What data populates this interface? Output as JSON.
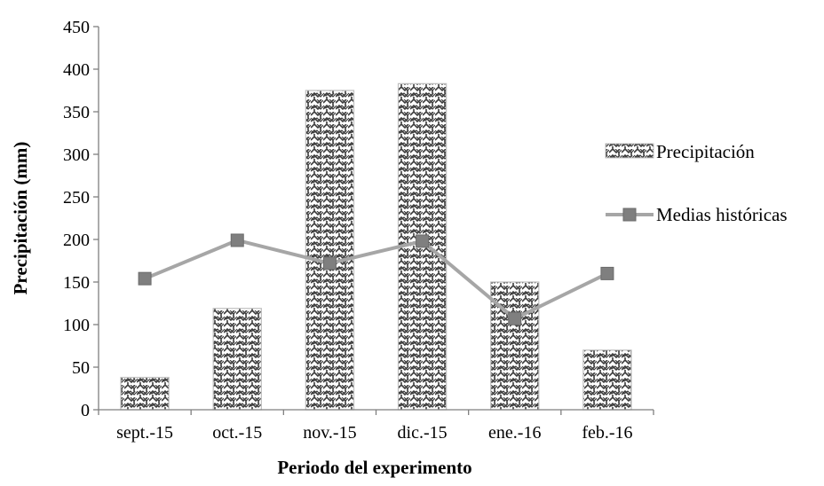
{
  "chart_data": {
    "type": "bar",
    "categories": [
      "sept.-15",
      "oct.-15",
      "nov.-15",
      "dic.-15",
      "ene.-16",
      "feb.-16"
    ],
    "series": [
      {
        "name": "Precipitación",
        "kind": "bar",
        "pattern": "zigzag-hatch",
        "values": [
          38,
          119,
          375,
          383,
          150,
          70
        ]
      },
      {
        "name": "Medias históricas",
        "kind": "line",
        "marker": "square",
        "color": "#a6a6a6",
        "marker_color": "#7f7f7f",
        "values": [
          154,
          199,
          172,
          198,
          107,
          160
        ]
      }
    ],
    "title": "",
    "xlabel": "Periodo del experimento",
    "ylabel": "Precipitación (mm)",
    "ylim": [
      0,
      450
    ],
    "yticks": [
      "0",
      "50",
      "100",
      "150",
      "200",
      "250",
      "300",
      "350",
      "400",
      "450"
    ],
    "grid": false,
    "legend_position": "right"
  }
}
